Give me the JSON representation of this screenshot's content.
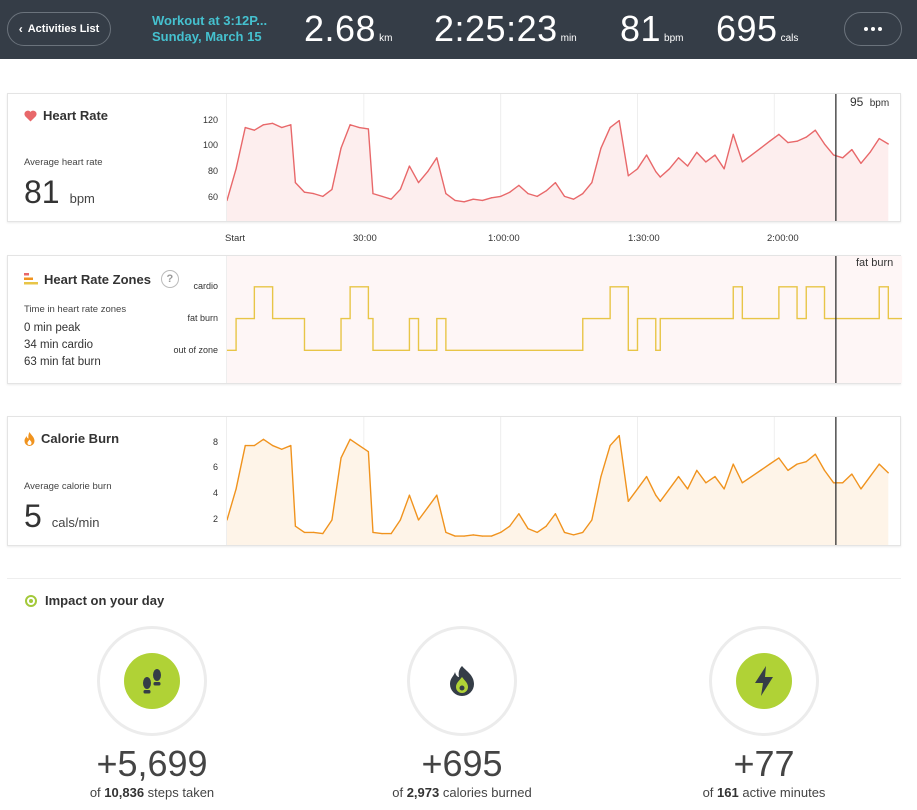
{
  "header": {
    "back_label": "Activities List",
    "title": "Workout at 3:12P...",
    "date": "Sunday, March 15",
    "stats": [
      {
        "value": "2.68",
        "unit": "km"
      },
      {
        "value": "2:25:23",
        "unit": "min"
      },
      {
        "value": "81",
        "unit": "bpm"
      },
      {
        "value": "695",
        "unit": "cals"
      }
    ]
  },
  "heart_rate": {
    "title": "Heart Rate",
    "sub": "Average heart rate",
    "value": "81",
    "unit": "bpm",
    "cursor_label": "95",
    "cursor_unit": "bpm",
    "yticks": [
      "120",
      "100",
      "80",
      "60"
    ]
  },
  "zones": {
    "title": "Heart Rate Zones",
    "help": "?",
    "sub": "Time in heart rate zones",
    "lines": [
      "0 min peak",
      "34 min cardio",
      "63 min fat burn"
    ],
    "cursor_label": "fat burn",
    "levels": [
      "cardio",
      "fat burn",
      "out of zone"
    ]
  },
  "calories": {
    "title": "Calorie Burn",
    "sub": "Average calorie burn",
    "value": "5",
    "unit": "cals/min",
    "yticks": [
      "8",
      "6",
      "4",
      "2"
    ]
  },
  "xaxis": [
    "Start",
    "30:00",
    "1:00:00",
    "1:30:00",
    "2:00:00"
  ],
  "impact": {
    "title": "Impact on your day",
    "items": [
      {
        "icon": "footprints-icon",
        "value": "+5,699",
        "pre": "of ",
        "total": "10,836",
        "post": " steps taken"
      },
      {
        "icon": "flame-icon",
        "value": "+695",
        "pre": "of ",
        "total": "2,973",
        "post": " calories burned"
      },
      {
        "icon": "lightning-icon",
        "value": "+77",
        "pre": "of ",
        "total": "161",
        "post": " active minutes"
      }
    ]
  },
  "colors": {
    "header_bg": "#353d47",
    "title_accent": "#45c1cf",
    "heart": "#e8686a",
    "zones": "#e8c547",
    "calories": "#f0931e",
    "impact_green": "#b0d236"
  },
  "chart_data": [
    {
      "type": "line",
      "title": "Heart Rate",
      "ylabel": "bpm",
      "ylim": [
        50,
        130
      ],
      "x": [
        0,
        2,
        4,
        6,
        8,
        10,
        12,
        14,
        15,
        17,
        19,
        21,
        23,
        25,
        27,
        29,
        31,
        32,
        34,
        36,
        38,
        40,
        42,
        44,
        46,
        48,
        50,
        52,
        54,
        56,
        58,
        60,
        62,
        64,
        66,
        68,
        70,
        72,
        74,
        76,
        78,
        80,
        82,
        84,
        86,
        88,
        90,
        92,
        94,
        95,
        97,
        99,
        101,
        103,
        105,
        107,
        109,
        111,
        113,
        115,
        117,
        119,
        121,
        123,
        125,
        127,
        129,
        131,
        133,
        135,
        137,
        139,
        141,
        143,
        145
      ],
      "values": [
        57,
        80,
        110,
        108,
        112,
        113,
        110,
        112,
        70,
        63,
        62,
        60,
        65,
        95,
        112,
        110,
        109,
        62,
        60,
        58,
        65,
        82,
        70,
        78,
        88,
        62,
        57,
        56,
        58,
        57,
        59,
        60,
        63,
        68,
        62,
        60,
        64,
        70,
        60,
        58,
        62,
        70,
        95,
        110,
        115,
        75,
        80,
        90,
        78,
        74,
        80,
        88,
        82,
        92,
        85,
        90,
        80,
        105,
        85,
        90,
        95,
        100,
        105,
        99,
        100,
        103,
        108,
        98,
        90,
        88,
        94,
        84,
        92,
        102,
        98
      ]
    },
    {
      "type": "line",
      "title": "Heart Rate Zones",
      "categories_y": [
        "out of zone",
        "fat burn",
        "cardio"
      ],
      "x": [
        0,
        2,
        4,
        6,
        8,
        10,
        12,
        14,
        15,
        17,
        19,
        21,
        23,
        25,
        27,
        29,
        31,
        32,
        34,
        36,
        38,
        40,
        42,
        44,
        46,
        48,
        50,
        52,
        54,
        56,
        58,
        60,
        62,
        64,
        66,
        68,
        70,
        72,
        74,
        76,
        78,
        80,
        82,
        84,
        86,
        88,
        90,
        92,
        94,
        95,
        97,
        99,
        101,
        103,
        105,
        107,
        109,
        111,
        113,
        115,
        117,
        119,
        121,
        123,
        125,
        127,
        129,
        131,
        133,
        135,
        137,
        139,
        141,
        143,
        145
      ],
      "values": [
        0,
        1,
        1,
        2,
        2,
        1,
        1,
        1,
        1,
        0,
        0,
        0,
        0,
        1,
        2,
        2,
        1,
        0,
        0,
        0,
        0,
        1,
        0,
        0,
        1,
        0,
        0,
        0,
        0,
        0,
        0,
        0,
        0,
        0,
        0,
        0,
        0,
        0,
        0,
        0,
        1,
        1,
        1,
        2,
        2,
        0,
        1,
        1,
        0,
        1,
        1,
        1,
        1,
        1,
        1,
        1,
        1,
        2,
        1,
        1,
        1,
        1,
        2,
        2,
        1,
        2,
        2,
        1,
        1,
        1,
        1,
        1,
        1,
        2,
        1
      ]
    },
    {
      "type": "line",
      "title": "Calorie Burn",
      "ylabel": "cals/min",
      "ylim": [
        0,
        10
      ],
      "x": [
        0,
        2,
        4,
        6,
        8,
        10,
        12,
        14,
        15,
        17,
        19,
        21,
        23,
        25,
        27,
        29,
        31,
        32,
        34,
        36,
        38,
        40,
        42,
        44,
        46,
        48,
        50,
        52,
        54,
        56,
        58,
        60,
        62,
        64,
        66,
        68,
        70,
        72,
        74,
        76,
        78,
        80,
        82,
        84,
        86,
        88,
        90,
        92,
        94,
        95,
        97,
        99,
        101,
        103,
        105,
        107,
        109,
        111,
        113,
        115,
        117,
        119,
        121,
        123,
        125,
        127,
        129,
        131,
        133,
        135,
        137,
        139,
        141,
        143,
        145
      ],
      "values": [
        2.5,
        5,
        8.5,
        8.5,
        9,
        8.5,
        8.2,
        8.5,
        2,
        1.5,
        1.5,
        1.4,
        2.5,
        7.5,
        9,
        8.5,
        8,
        1.5,
        1.4,
        1.4,
        2.5,
        4.5,
        2.5,
        3.5,
        4.5,
        1.5,
        1.2,
        1.2,
        1.3,
        1.2,
        1.2,
        1.5,
        2,
        3,
        1.8,
        1.5,
        2,
        3,
        1.5,
        1.3,
        1.5,
        2.5,
        6,
        8.5,
        9.3,
        4,
        5,
        6,
        4.5,
        4,
        5,
        6,
        5,
        6.5,
        5.5,
        6,
        5,
        7,
        5.5,
        6,
        6.5,
        7,
        7.5,
        6.5,
        7,
        7.2,
        7.8,
        6.5,
        5.5,
        5.5,
        6.2,
        5,
        6,
        7,
        6.3
      ]
    }
  ]
}
